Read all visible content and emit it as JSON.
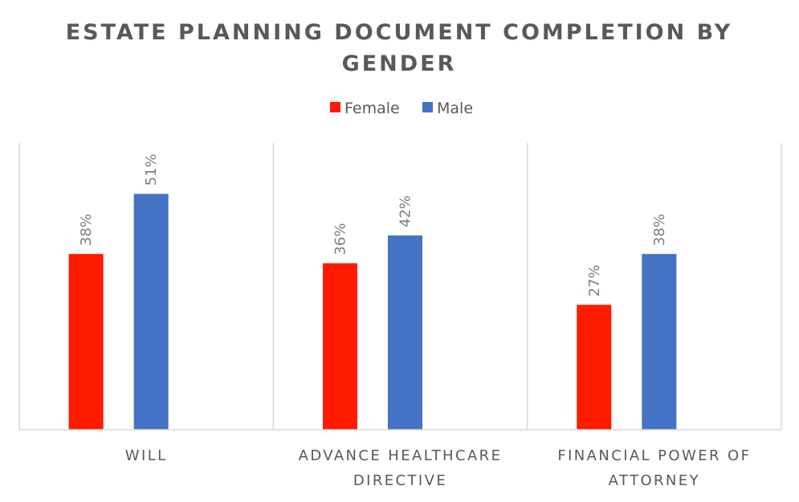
{
  "chart_data": {
    "type": "bar",
    "title_lines": [
      "ESTATE PLANNING DOCUMENT COMPLETION BY",
      "GENDER"
    ],
    "categories": [
      [
        "WILL"
      ],
      [
        "ADVANCE HEALTHCARE",
        "DIRECTIVE"
      ],
      [
        "FINANCIAL POWER OF",
        "ATTORNEY"
      ]
    ],
    "series": [
      {
        "name": "Female",
        "color": "#ff1a00",
        "values": [
          38,
          36,
          27
        ],
        "labels": [
          "38%",
          "36%",
          "27%"
        ]
      },
      {
        "name": "Male",
        "color": "#4472c4",
        "values": [
          51,
          42,
          38
        ],
        "labels": [
          "51%",
          "42%",
          "38%"
        ]
      }
    ],
    "value_unit": "%",
    "ylim": [
      0,
      62
    ],
    "legend_position": "top",
    "gridlines": false,
    "category_dividers": true
  }
}
